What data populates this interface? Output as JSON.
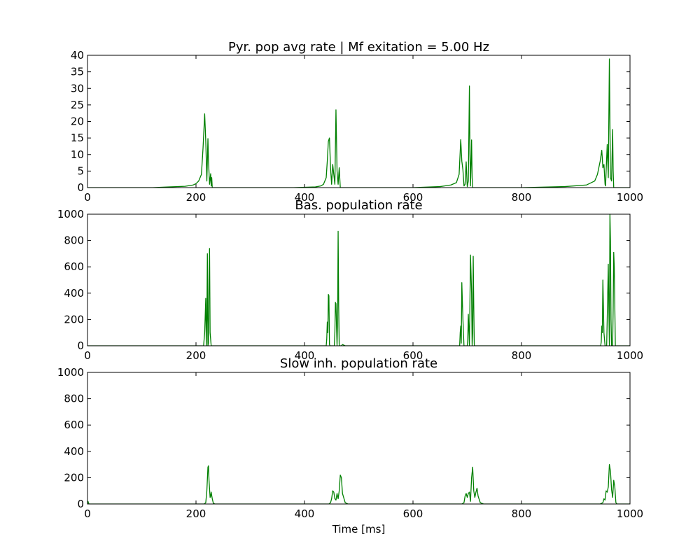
{
  "figure": {
    "line_color": "#008000",
    "background": "#ffffff"
  },
  "chart_data": [
    {
      "type": "line",
      "title": "Pyr. pop avg rate | Mf exitation = 5.00 Hz",
      "xlabel": "",
      "ylabel": "",
      "xlim": [
        0,
        1000
      ],
      "ylim": [
        0,
        40
      ],
      "xticks": [
        "0",
        "200",
        "400",
        "600",
        "800",
        "1000"
      ],
      "yticks": [
        "0",
        "5",
        "10",
        "15",
        "20",
        "25",
        "30",
        "35",
        "40"
      ],
      "grid": false,
      "series": [
        {
          "x": [
            0,
            120,
            150,
            180,
            195,
            200,
            205,
            210,
            213,
            216,
            218,
            220,
            222,
            223,
            225,
            227,
            228,
            229,
            230,
            231,
            235,
            300,
            380,
            420,
            430,
            435,
            440,
            442,
            444,
            446,
            448,
            450,
            452,
            454,
            456,
            458,
            460,
            462,
            464,
            466,
            470,
            500,
            600,
            650,
            670,
            680,
            685,
            688,
            690,
            692,
            694,
            696,
            698,
            700,
            702,
            704,
            705,
            706,
            708,
            709,
            710,
            712,
            715,
            750,
            800,
            880,
            920,
            935,
            940,
            945,
            948,
            950,
            952,
            954,
            955,
            956,
            958,
            960,
            962,
            963,
            964,
            966,
            968,
            969,
            970,
            972,
            975,
            1000
          ],
          "y": [
            0,
            0,
            0.2,
            0.4,
            0.8,
            1.2,
            2,
            4,
            12,
            22.3,
            14,
            2,
            14.8,
            8,
            1,
            4.2,
            0.5,
            3,
            0,
            0,
            0,
            0,
            0,
            0.2,
            0.5,
            1,
            3,
            8,
            14,
            15,
            6,
            1,
            7,
            4,
            1,
            23.5,
            5,
            1,
            6,
            0,
            0,
            0,
            0,
            0.3,
            0.8,
            1.5,
            4,
            14.5,
            8,
            5.4,
            0.5,
            1,
            7.8,
            0.3,
            2,
            30.7,
            10,
            0.5,
            14.4,
            3,
            0,
            0,
            0,
            0,
            0,
            0.3,
            0.8,
            2,
            4,
            8,
            11.3,
            6,
            7,
            1,
            0.5,
            5,
            13,
            3,
            38.9,
            20,
            3,
            2,
            17.6,
            5,
            0,
            0,
            0,
            0
          ]
        }
      ]
    },
    {
      "type": "line",
      "title": "Bas. population rate",
      "xlabel": "",
      "ylabel": "",
      "xlim": [
        0,
        1000
      ],
      "ylim": [
        0,
        1000
      ],
      "xticks": [
        "0",
        "200",
        "400",
        "600",
        "800",
        "1000"
      ],
      "yticks": [
        "0",
        "200",
        "400",
        "600",
        "800",
        "1000"
      ],
      "grid": false,
      "series": [
        {
          "x": [
            0,
            210,
            214,
            216,
            218,
            219,
            220,
            221,
            222,
            223,
            224,
            225,
            226,
            228,
            230,
            437,
            440,
            441,
            442,
            443,
            444,
            445,
            446,
            447,
            448,
            450,
            452,
            454,
            455,
            456,
            457,
            458,
            460,
            461,
            462,
            463,
            464,
            466,
            468,
            470,
            475,
            680,
            684,
            686,
            687,
            688,
            689,
            690,
            692,
            694,
            696,
            698,
            700,
            701,
            702,
            703,
            704,
            706,
            708,
            709,
            710,
            711,
            712,
            713,
            714,
            716,
            720,
            940,
            944,
            946,
            947,
            948,
            949,
            950,
            952,
            954,
            955,
            956,
            957,
            958,
            960,
            961,
            962,
            963,
            964,
            965,
            966,
            967,
            968,
            969,
            970,
            971,
            972,
            973,
            975,
            1000
          ],
          "y": [
            0,
            0,
            0,
            100,
            360,
            0,
            200,
            700,
            0,
            20,
            500,
            740,
            100,
            0,
            0,
            0,
            0,
            50,
            180,
            100,
            390,
            380,
            10,
            0,
            0,
            0,
            0,
            0,
            0,
            100,
            330,
            320,
            0,
            200,
            870,
            300,
            0,
            0,
            0,
            10,
            0,
            0,
            0,
            0,
            100,
            150,
            20,
            480,
            200,
            0,
            0,
            0,
            0,
            50,
            240,
            120,
            0,
            690,
            400,
            0,
            100,
            680,
            300,
            0,
            0,
            0,
            0,
            0,
            0,
            0,
            30,
            150,
            100,
            500,
            100,
            0,
            0,
            0,
            0,
            200,
            620,
            300,
            0,
            1000,
            800,
            200,
            0,
            0,
            0,
            300,
            710,
            600,
            300,
            0,
            0,
            0
          ]
        }
      ]
    },
    {
      "type": "line",
      "title": "Slow inh. population rate",
      "xlabel": "Time [ms]",
      "ylabel": "",
      "xlim": [
        0,
        1000
      ],
      "ylim": [
        0,
        1000
      ],
      "xticks": [
        "0",
        "200",
        "400",
        "600",
        "800",
        "1000"
      ],
      "yticks": [
        "0",
        "200",
        "400",
        "600",
        "800",
        "1000"
      ],
      "grid": false,
      "series": [
        {
          "x": [
            0,
            1,
            2,
            3,
            5,
            215,
            218,
            220,
            222,
            223,
            224,
            226,
            227,
            228,
            230,
            232,
            235,
            445,
            448,
            450,
            452,
            454,
            456,
            458,
            460,
            462,
            464,
            466,
            468,
            470,
            475,
            480,
            690,
            694,
            696,
            698,
            700,
            702,
            704,
            706,
            708,
            710,
            712,
            714,
            716,
            718,
            720,
            724,
            730,
            945,
            950,
            952,
            954,
            956,
            958,
            960,
            962,
            964,
            966,
            968,
            970,
            972,
            974,
            976,
            980,
            1000
          ],
          "y": [
            0,
            20,
            5,
            0,
            0,
            0,
            10,
            100,
            280,
            290,
            180,
            50,
            60,
            90,
            40,
            5,
            0,
            0,
            10,
            40,
            100,
            90,
            40,
            30,
            80,
            40,
            100,
            220,
            200,
            80,
            10,
            0,
            0,
            10,
            60,
            80,
            50,
            80,
            90,
            20,
            200,
            280,
            100,
            50,
            90,
            120,
            60,
            10,
            0,
            0,
            10,
            40,
            30,
            100,
            90,
            130,
            300,
            250,
            110,
            50,
            180,
            130,
            10,
            0,
            0,
            0
          ]
        }
      ]
    }
  ]
}
